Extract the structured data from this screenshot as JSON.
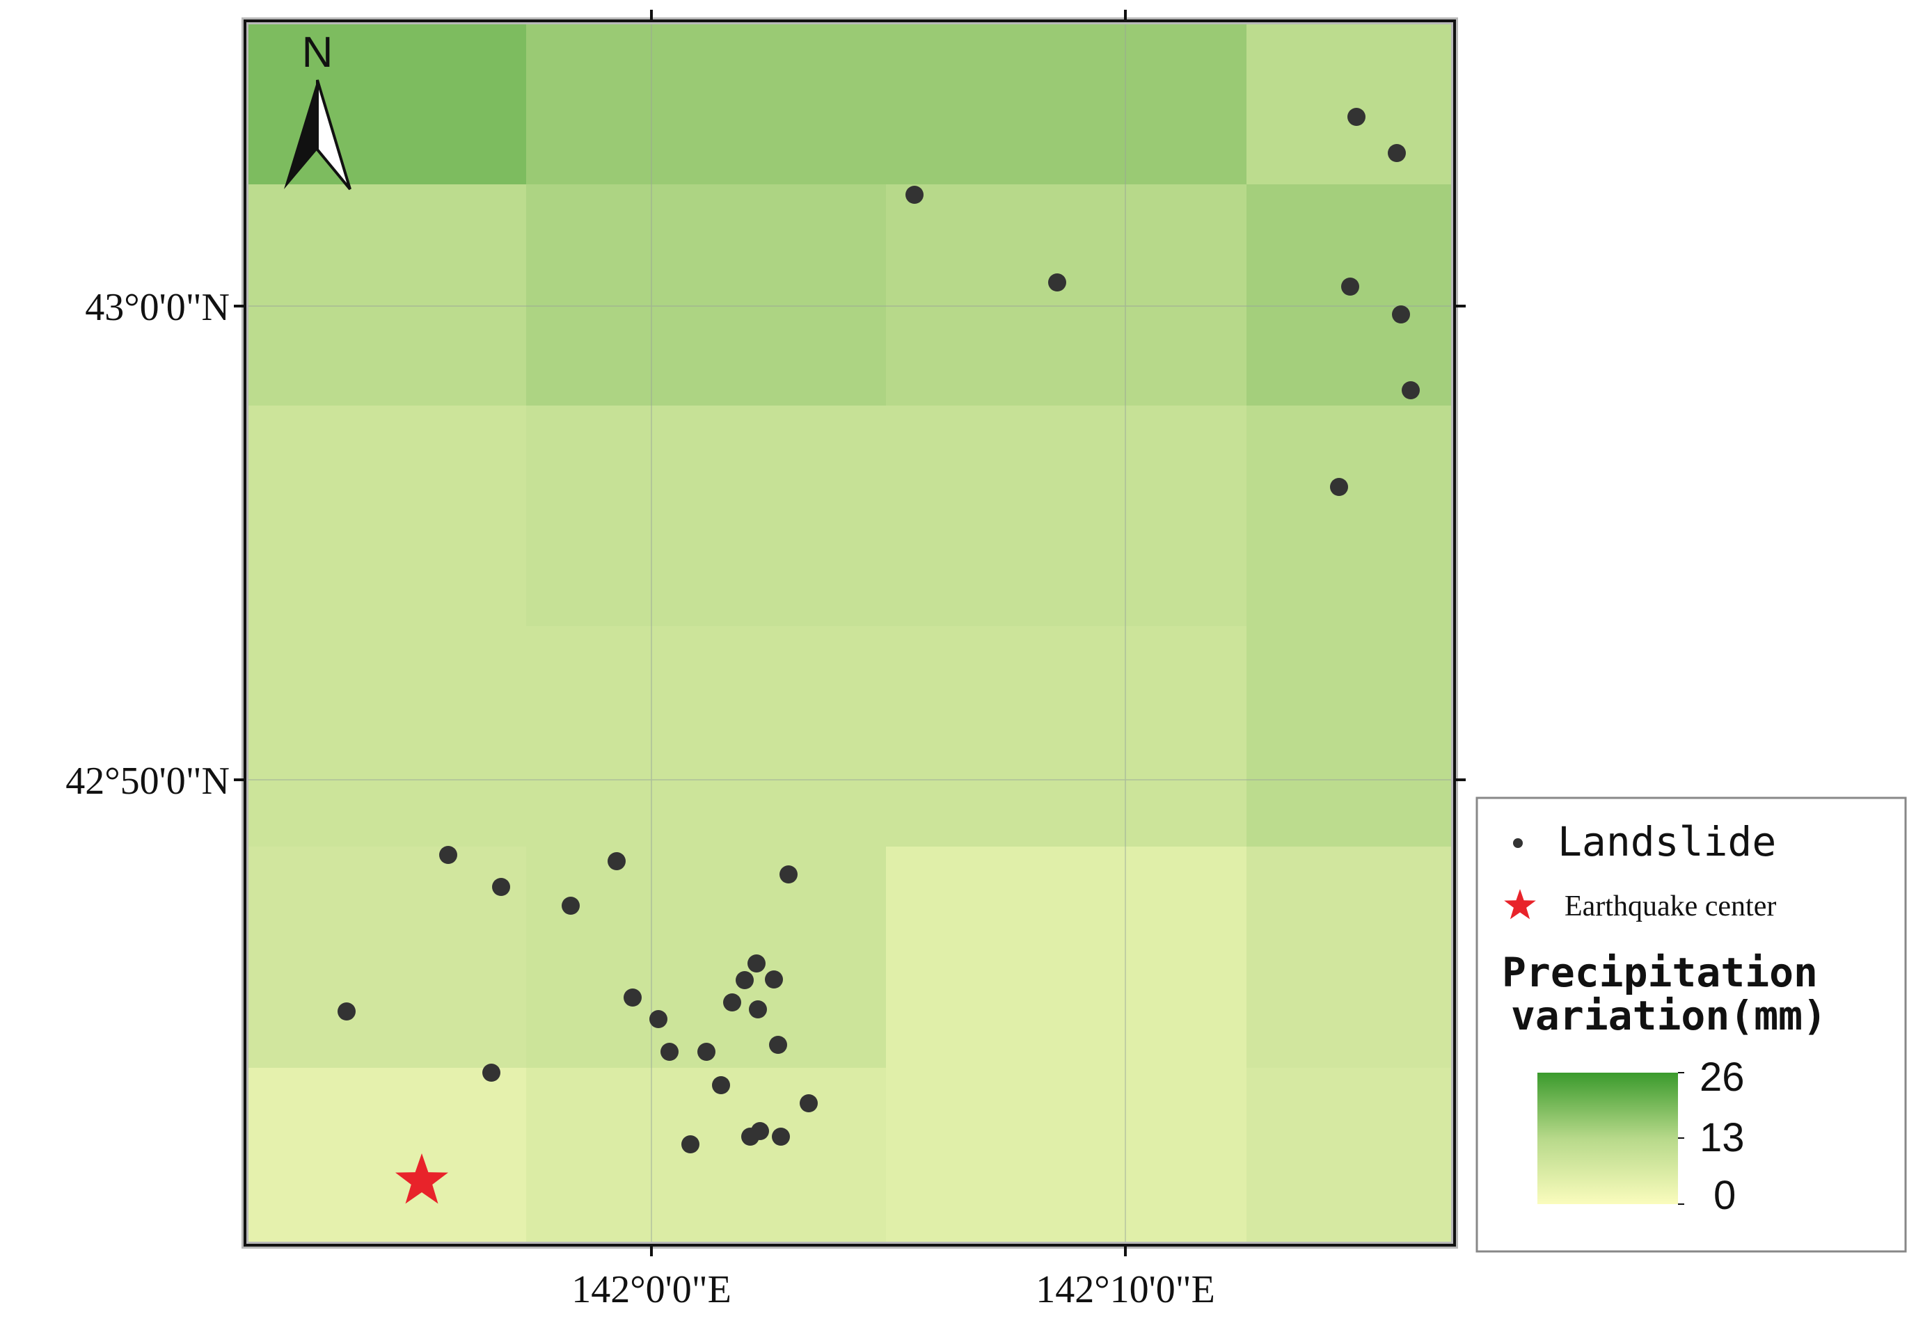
{
  "map": {
    "axis_labels": {
      "lat": [
        "43°0'0\"N",
        "42°50'0\"N"
      ],
      "lon": [
        "142°0'0\"E",
        "142°10'0\"E"
      ]
    },
    "north_arrow_label": "N",
    "colors": {
      "frame": "#111111",
      "landslide": "#333333",
      "earthquake": "#e8232a",
      "ramp_high": "#3a9a2c",
      "ramp_mid": "#b7d98a",
      "ramp_low": "#fafcbd"
    },
    "precipitation_grid_mm": [
      [
        19,
        16,
        16,
        16,
        12
      ],
      [
        12,
        14,
        13,
        13,
        15
      ],
      [
        9,
        10,
        10,
        11,
        12
      ],
      [
        9,
        9,
        9,
        9,
        12
      ],
      [
        8,
        9,
        5,
        5,
        8
      ],
      [
        4,
        6,
        5,
        5,
        7
      ]
    ],
    "icons": [
      "north-arrow-icon",
      "landslide-dot-icon",
      "earthquake-star-icon"
    ]
  },
  "legend": {
    "landslide_label": "Landslide",
    "earthquake_label": "Earthquake center",
    "title_line1": "Precipitation",
    "title_line2": "variation(mm)",
    "ticks": [
      "26",
      "13",
      "0"
    ],
    "range_mm": [
      0,
      26
    ]
  }
}
